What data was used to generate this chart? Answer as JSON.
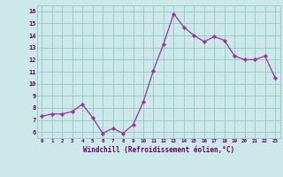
{
  "x": [
    0,
    1,
    2,
    3,
    4,
    5,
    6,
    7,
    8,
    9,
    10,
    11,
    12,
    13,
    14,
    15,
    16,
    17,
    18,
    19,
    20,
    21,
    22,
    23
  ],
  "y": [
    7.3,
    7.5,
    7.5,
    7.7,
    8.3,
    7.2,
    5.9,
    6.3,
    5.9,
    6.6,
    8.5,
    11.1,
    13.3,
    15.8,
    14.7,
    14.0,
    13.5,
    13.9,
    13.6,
    12.3,
    12.0,
    12.0,
    12.3,
    10.5
  ],
  "line_color": "#993399",
  "marker_color": "#993399",
  "bg_color": "#cce8e8",
  "grid_color": "#99cccc",
  "xlabel": "Windchill (Refroidissement éolien,°C)",
  "xlabel_color": "#660066",
  "tick_color": "#660066",
  "ylim": [
    5.5,
    16.5
  ],
  "xlim": [
    -0.5,
    23.5
  ],
  "yticks": [
    6,
    7,
    8,
    9,
    10,
    11,
    12,
    13,
    14,
    15,
    16
  ],
  "xticks": [
    0,
    1,
    2,
    3,
    4,
    5,
    6,
    7,
    8,
    9,
    10,
    11,
    12,
    13,
    14,
    15,
    16,
    17,
    18,
    19,
    20,
    21,
    22,
    23
  ]
}
